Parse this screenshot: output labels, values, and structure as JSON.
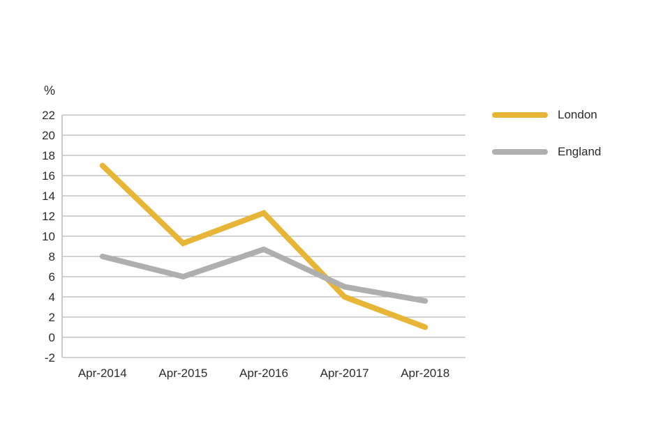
{
  "chart_data": {
    "type": "line",
    "title": "",
    "xlabel": "",
    "ylabel": "%",
    "categories": [
      "Apr-2014",
      "Apr-2015",
      "Apr-2016",
      "Apr-2017",
      "Apr-2018"
    ],
    "series": [
      {
        "name": "London",
        "color": "#E8B636",
        "values": [
          17,
          9.3,
          12.3,
          4,
          1
        ]
      },
      {
        "name": "England",
        "color": "#AFAFAF",
        "values": [
          8,
          6,
          8.7,
          5,
          3.6
        ]
      }
    ],
    "ylim": [
      -2,
      22
    ],
    "ytick_step": 2,
    "grid": "horizontal",
    "legend_position": "right",
    "colors": {
      "gridline": "#A6A6A6",
      "axis_line": "#C9C9C9",
      "text": "#2B2B2B",
      "background": "#FFFFFF"
    }
  }
}
